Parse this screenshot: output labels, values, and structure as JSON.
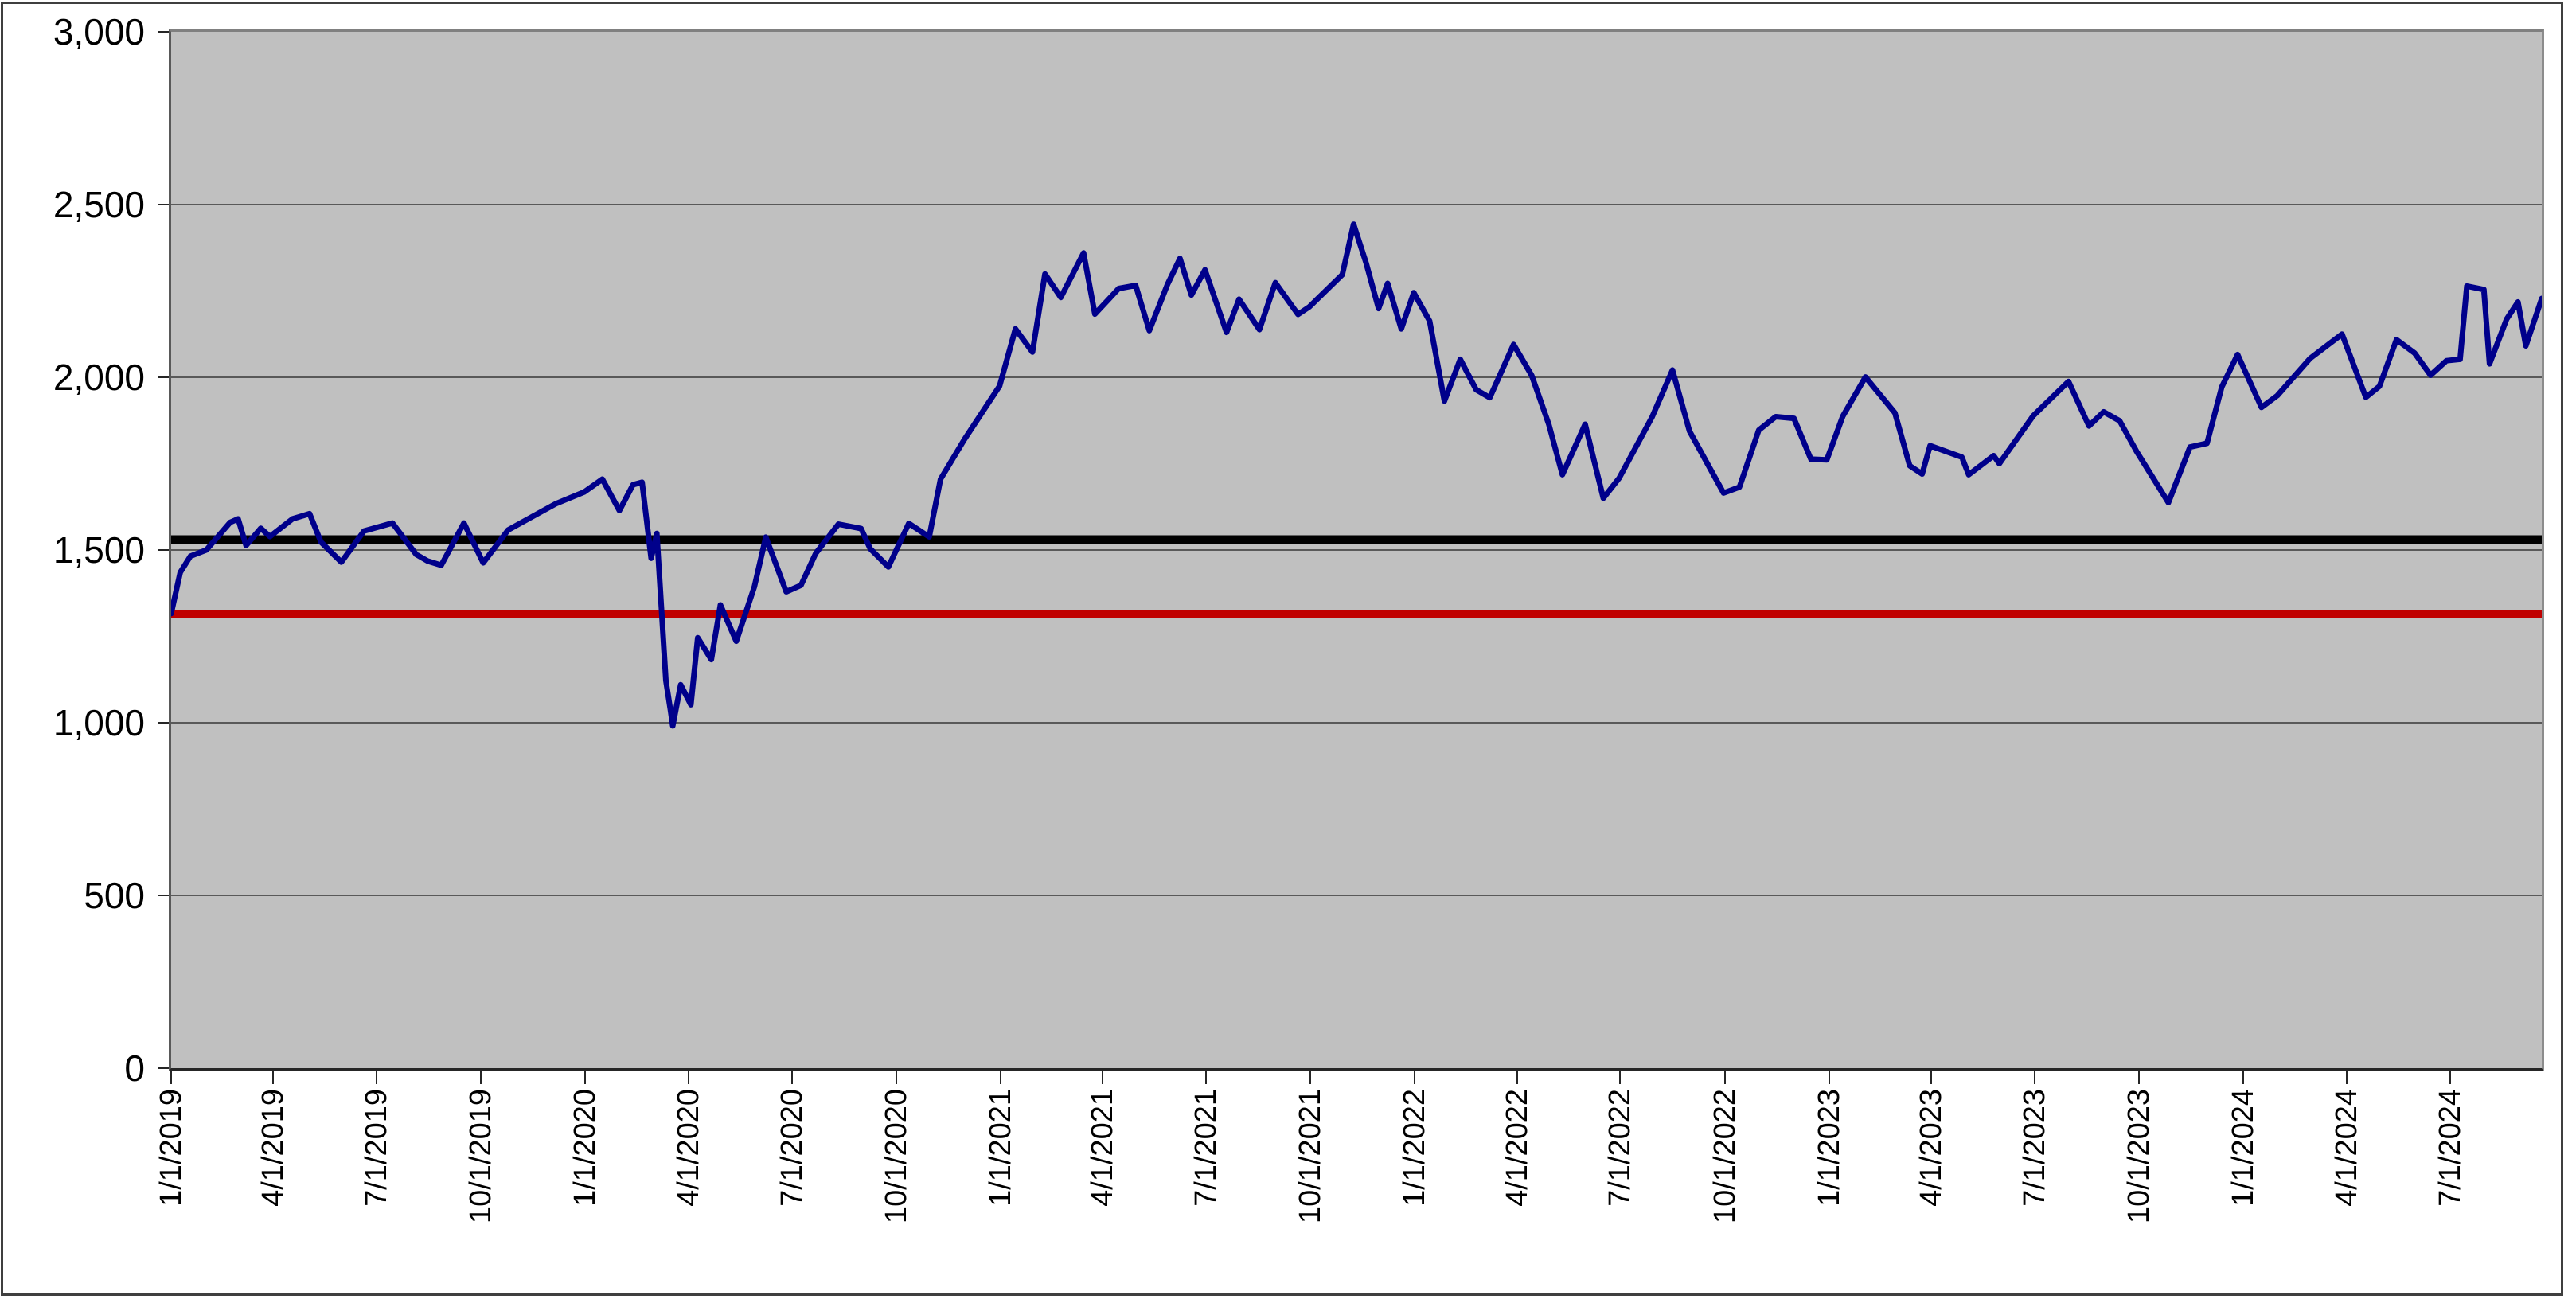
{
  "chart_data": {
    "type": "line",
    "title": "",
    "xlabel": "",
    "ylabel": "",
    "grid": true,
    "legend": false,
    "plot_bg_color": "#c0c0c0",
    "gridline_color": "#595959",
    "ylim": [
      0,
      3000
    ],
    "ytick_step": 500,
    "y_ticks": [
      {
        "value": 0,
        "label": "0"
      },
      {
        "value": 500,
        "label": "500"
      },
      {
        "value": 1000,
        "label": "1,000"
      },
      {
        "value": 1500,
        "label": "1,500"
      },
      {
        "value": 2000,
        "label": "2,000"
      },
      {
        "value": 2500,
        "label": "2,500"
      },
      {
        "value": 3000,
        "label": "3,000"
      }
    ],
    "x_tick_labels": [
      "1/1/2019",
      "4/1/2019",
      "7/1/2019",
      "10/1/2019",
      "1/1/2020",
      "4/1/2020",
      "7/1/2020",
      "10/1/2020",
      "1/1/2021",
      "4/1/2021",
      "7/1/2021",
      "10/1/2021",
      "1/1/2022",
      "4/1/2022",
      "7/1/2022",
      "10/1/2022",
      "1/1/2023",
      "4/1/2023",
      "7/1/2023",
      "10/1/2023",
      "1/1/2024",
      "4/1/2024",
      "7/1/2024"
    ],
    "x_range": [
      "1/1/2019",
      "9/20/2024"
    ],
    "reference_lines": [
      {
        "name": "black-reference-line",
        "value": 1530,
        "color": "#000000",
        "thickness": 11
      },
      {
        "name": "red-reference-line",
        "value": 1315,
        "color": "#c00000",
        "thickness": 10
      }
    ],
    "x": [
      "1/1/2019",
      "1/9/2019",
      "1/18/2019",
      "2/1/2019",
      "2/22/2019",
      "3/1/2019",
      "3/8/2019",
      "3/21/2019",
      "3/29/2019",
      "4/18/2019",
      "5/3/2019",
      "5/13/2019",
      "5/31/2019",
      "6/20/2019",
      "7/15/2019",
      "8/5/2019",
      "8/15/2019",
      "8/27/2019",
      "9/16/2019",
      "10/3/2019",
      "10/25/2019",
      "11/15/2019",
      "12/6/2019",
      "12/31/2019",
      "1/16/2020",
      "1/31/2020",
      "2/12/2020",
      "2/20/2020",
      "2/28/2020",
      "3/4/2020",
      "3/12/2020",
      "3/16/2020",
      "3/18/2020",
      "3/25/2020",
      "4/3/2020",
      "4/9/2020",
      "4/21/2020",
      "4/29/2020",
      "5/13/2020",
      "5/29/2020",
      "6/8/2020",
      "6/26/2020",
      "7/9/2020",
      "7/22/2020",
      "8/11/2020",
      "8/31/2020",
      "9/8/2020",
      "9/24/2020",
      "10/12/2020",
      "10/30/2020",
      "11/9/2020",
      "11/30/2020",
      "12/31/2020",
      "1/14/2021",
      "1/29/2021",
      "2/9/2021",
      "2/23/2021",
      "3/15/2021",
      "3/25/2021",
      "4/15/2021",
      "4/30/2021",
      "5/12/2021",
      "5/28/2021",
      "6/8/2021",
      "6/18/2021",
      "6/30/2021",
      "7/19/2021",
      "7/30/2021",
      "8/17/2021",
      "8/31/2021",
      "9/20/2021",
      "9/30/2021",
      "10/29/2021",
      "11/8/2021",
      "11/19/2021",
      "11/30/2021",
      "12/8/2021",
      "12/20/2021",
      "12/31/2021",
      "1/14/2022",
      "1/27/2022",
      "2/10/2022",
      "2/24/2022",
      "3/8/2022",
      "3/29/2022",
      "4/14/2022",
      "4/29/2022",
      "5/11/2022",
      "5/31/2022",
      "6/16/2022",
      "6/30/2022",
      "7/29/2022",
      "8/16/2022",
      "8/31/2022",
      "9/30/2022",
      "10/14/2022",
      "10/31/2022",
      "11/15/2022",
      "12/1/2022",
      "12/16/2022",
      "12/30/2022",
      "1/13/2023",
      "2/2/2023",
      "2/28/2023",
      "3/13/2023",
      "3/24/2023",
      "3/31/2023",
      "4/28/2023",
      "5/4/2023",
      "5/26/2023",
      "5/31/2023",
      "6/30/2023",
      "7/31/2023",
      "8/18/2023",
      "8/31/2023",
      "9/14/2023",
      "9/29/2023",
      "10/27/2023",
      "11/15/2023",
      "11/30/2023",
      "12/13/2023",
      "12/27/2023",
      "1/17/2024",
      "1/31/2024",
      "2/29/2024",
      "3/28/2024",
      "4/18/2024",
      "4/30/2024",
      "5/15/2024",
      "5/31/2024",
      "6/14/2024",
      "6/28/2024",
      "7/10/2024",
      "7/16/2024",
      "7/31/2024",
      "8/5/2024",
      "8/20/2024",
      "8/30/2024",
      "9/6/2024",
      "9/20/2024"
    ],
    "series": [
      {
        "name": "daily-index-close",
        "color": "#00008b",
        "line_width": 7,
        "values": [
          1316,
          1435,
          1482,
          1500,
          1580,
          1590,
          1513,
          1563,
          1539,
          1590,
          1605,
          1523,
          1465,
          1555,
          1578,
          1487,
          1468,
          1456,
          1578,
          1463,
          1558,
          1596,
          1634,
          1668,
          1705,
          1614,
          1689,
          1696,
          1476,
          1548,
          1122,
          1037,
          991,
          1110,
          1052,
          1246,
          1183,
          1341,
          1236,
          1394,
          1537,
          1379,
          1398,
          1490,
          1575,
          1562,
          1504,
          1451,
          1577,
          1538,
          1705,
          1820,
          1975,
          2140,
          2073,
          2299,
          2231,
          2360,
          2183,
          2257,
          2266,
          2135,
          2269,
          2344,
          2238,
          2311,
          2130,
          2226,
          2138,
          2274,
          2182,
          2204,
          2297,
          2443,
          2331,
          2199,
          2272,
          2140,
          2245,
          2163,
          1931,
          2052,
          1964,
          1941,
          2095,
          2005,
          1864,
          1718,
          1864,
          1650,
          1708,
          1885,
          2021,
          1844,
          1665,
          1682,
          1847,
          1886,
          1881,
          1763,
          1761,
          1887,
          2001,
          1897,
          1744,
          1720,
          1802,
          1769,
          1718,
          1773,
          1750,
          1889,
          1988,
          1859,
          1900,
          1874,
          1785,
          1637,
          1798,
          1809,
          1972,
          2066,
          1913,
          1947,
          2055,
          2125,
          1942,
          1974,
          2109,
          2070,
          2006,
          2048,
          2052,
          2264,
          2254,
          2039,
          2168,
          2218,
          2091,
          2228
        ]
      }
    ]
  }
}
